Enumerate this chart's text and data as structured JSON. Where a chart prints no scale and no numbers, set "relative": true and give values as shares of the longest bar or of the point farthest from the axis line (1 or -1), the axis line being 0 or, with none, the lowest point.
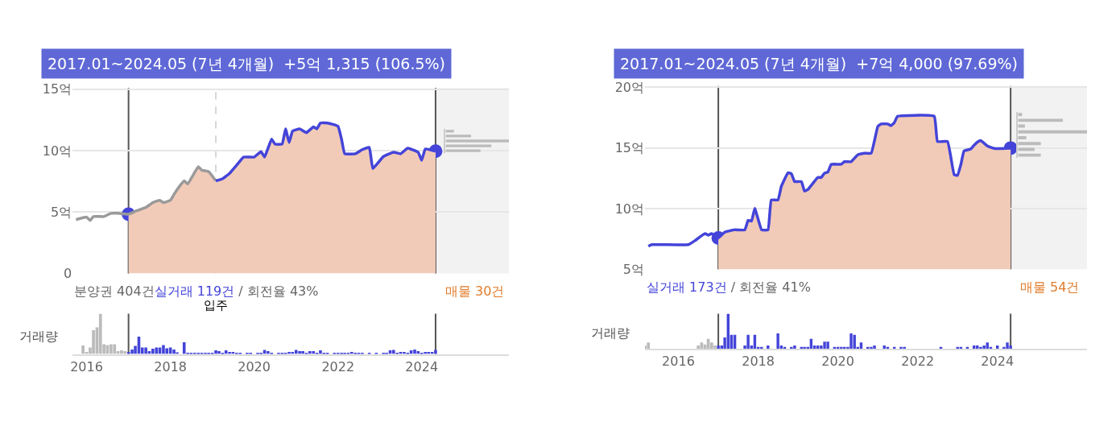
{
  "chart_data": [
    {
      "type": "line",
      "xlim": [
        "2015-09",
        "2026-02"
      ],
      "ylim": [
        0,
        15.1
      ],
      "yticks": [
        0,
        {
          "value": 5,
          "label": "5억"
        },
        {
          "value": 10,
          "label": "10억"
        },
        {
          "value": 15,
          "label": "15억"
        }
      ],
      "tick_labels": "y",
      "grid": "y",
      "annotations": [
        "2017.01~2024.05 (7년 4개월)  +5억 1,315 (106.5%)",
        "분양권 404건",
        "실거래 119건",
        "/ 회전율 43%"
      ],
      "ref_lines": [
        {
          "axis": "x",
          "value": "2017-01",
          "color": "#555555"
        },
        {
          "axis": "x",
          "value": "2024-05",
          "color": "#555555"
        },
        {
          "axis": "x",
          "value": "2019-02",
          "label": "입주",
          "color": "#d6d6d6",
          "line_style": "dashed"
        }
      ],
      "bands": [
        {
          "axis": "x",
          "from": "2024-05",
          "to": "2026-02",
          "label": "매물 30건",
          "color": "#f2f2f2"
        }
      ],
      "series": [
        {
          "type": "area",
          "color": "#f2cbb8",
          "x": [
            "2017-01",
            "2017-03",
            "2017-06",
            "2017-08",
            "2017-10",
            "2017-11",
            "2018-01",
            "2018-02",
            "2018-04",
            "2018-05",
            "2018-06",
            "2018-09",
            "2018-10",
            "2018-12",
            "2019-02",
            "2019-04",
            "2019-06",
            "2019-08",
            "2019-10",
            "2020-01",
            "2020-03",
            "2020-04",
            "2020-06",
            "2020-07",
            "2020-09",
            "2020-10",
            "2020-11",
            "2020-12",
            "2021-02",
            "2021-04",
            "2021-06",
            "2021-07",
            "2021-08",
            "2021-10",
            "2022-01",
            "2022-02",
            "2022-03",
            "2022-06",
            "2022-08",
            "2022-10",
            "2022-11",
            "2023-02",
            "2023-05",
            "2023-07",
            "2023-09",
            "2023-12",
            "2024-01",
            "2024-02",
            "2024-05"
          ],
          "values": [
            4.82,
            5.05,
            5.37,
            5.77,
            5.95,
            5.77,
            5.95,
            6.43,
            7.22,
            7.54,
            7.28,
            8.68,
            8.41,
            8.28,
            7.54,
            7.7,
            8.15,
            8.81,
            9.47,
            9.47,
            9.92,
            9.47,
            10.93,
            10.53,
            10.53,
            11.77,
            10.66,
            11.59,
            11.77,
            11.46,
            11.93,
            11.77,
            12.25,
            12.25,
            11.98,
            10.93,
            9.74,
            9.74,
            10.08,
            10.26,
            8.54,
            9.52,
            9.87,
            9.74,
            10.19,
            9.87,
            9.21,
            10.13,
            9.95
          ]
        },
        {
          "type": "line",
          "color": "#9a9a9a",
          "x": [
            "2015-10",
            "2016-01",
            "2016-02",
            "2016-03",
            "2016-06",
            "2016-08",
            "2016-10",
            "2017-01",
            "2017-03",
            "2017-06",
            "2017-08",
            "2017-10",
            "2017-11",
            "2018-01",
            "2018-02",
            "2018-04",
            "2018-05",
            "2018-06",
            "2018-09",
            "2018-10",
            "2018-12",
            "2019-02"
          ],
          "values": [
            4.37,
            4.58,
            4.31,
            4.63,
            4.63,
            4.89,
            4.89,
            4.82,
            5.05,
            5.37,
            5.77,
            5.95,
            5.77,
            5.95,
            6.43,
            7.22,
            7.54,
            7.28,
            8.68,
            8.41,
            8.28,
            7.54
          ]
        },
        {
          "type": "line",
          "color": "#4444d9",
          "x": [
            "2019-02",
            "2019-04",
            "2019-06",
            "2019-08",
            "2019-10",
            "2020-01",
            "2020-03",
            "2020-04",
            "2020-06",
            "2020-07",
            "2020-09",
            "2020-10",
            "2020-11",
            "2020-12",
            "2021-02",
            "2021-04",
            "2021-06",
            "2021-07",
            "2021-08",
            "2021-10",
            "2022-01",
            "2022-02",
            "2022-03",
            "2022-06",
            "2022-08",
            "2022-10",
            "2022-11",
            "2023-02",
            "2023-05",
            "2023-07",
            "2023-09",
            "2023-12",
            "2024-01",
            "2024-02",
            "2024-05"
          ],
          "values": [
            7.54,
            7.7,
            8.15,
            8.81,
            9.47,
            9.47,
            9.92,
            9.47,
            10.93,
            10.53,
            10.53,
            11.77,
            10.66,
            11.59,
            11.77,
            11.46,
            11.93,
            11.77,
            12.25,
            12.25,
            11.98,
            10.93,
            9.74,
            9.74,
            10.08,
            10.26,
            8.54,
            9.52,
            9.87,
            9.74,
            10.19,
            9.87,
            9.21,
            10.13,
            9.95
          ]
        },
        {
          "type": "scatter",
          "color": "#4444d9",
          "x": [
            "2017-01",
            "2024-05"
          ],
          "values": [
            4.82,
            9.95
          ]
        }
      ]
    },
    {
      "type": "bar",
      "relative": true,
      "ylabel": "거래량",
      "xlim": [
        "2015-09",
        "2026-02"
      ],
      "xticks": [
        "2016",
        "2018",
        "2020",
        "2022",
        "2024"
      ],
      "tick_labels": "x",
      "ref_lines": [
        {
          "axis": "x",
          "value": "2017-01",
          "color": "#555555"
        },
        {
          "axis": "x",
          "value": "2024-05",
          "color": "#555555"
        }
      ],
      "series": [
        {
          "color": "#bbbbbb",
          "x": [
            "2015-12",
            "2016-01",
            "2016-02",
            "2016-03",
            "2016-04",
            "2016-05",
            "2016-06",
            "2016-07",
            "2016-08",
            "2016-09",
            "2016-10",
            "2016-11",
            "2016-12"
          ],
          "values": [
            0.21,
            0.05,
            0.16,
            0.59,
            0.66,
            1,
            0.24,
            0.22,
            0.24,
            0.24,
            0.07,
            0.09,
            0.07
          ]
        },
        {
          "color": "#4444d9",
          "x": [
            "2017-01",
            "2017-02",
            "2017-03",
            "2017-04",
            "2017-05",
            "2017-06",
            "2017-07",
            "2017-08",
            "2017-09",
            "2017-10",
            "2017-11",
            "2017-12",
            "2018-01",
            "2018-02",
            "2018-03",
            "2018-04",
            "2018-05",
            "2018-06",
            "2018-07",
            "2018-08",
            "2018-09",
            "2018-10",
            "2018-11",
            "2018-12",
            "2019-01",
            "2019-02",
            "2019-03",
            "2019-04",
            "2019-05",
            "2019-06",
            "2019-07",
            "2019-08",
            "2019-09",
            "2019-10",
            "2019-11",
            "2019-12",
            "2020-01",
            "2020-02",
            "2020-03",
            "2020-04",
            "2020-05",
            "2020-06",
            "2020-07",
            "2020-08",
            "2020-09",
            "2020-10",
            "2020-11",
            "2020-12",
            "2021-01",
            "2021-02",
            "2021-03",
            "2021-04",
            "2021-05",
            "2021-06",
            "2021-07",
            "2021-08",
            "2021-09",
            "2021-10",
            "2021-11",
            "2021-12",
            "2022-01",
            "2022-02",
            "2022-03",
            "2022-04",
            "2022-05",
            "2022-06",
            "2022-07",
            "2022-08",
            "2022-09",
            "2022-10",
            "2022-11",
            "2022-12",
            "2023-01",
            "2023-02",
            "2023-03",
            "2023-04",
            "2023-05",
            "2023-06",
            "2023-07",
            "2023-08",
            "2023-09",
            "2023-10",
            "2023-11",
            "2023-12",
            "2024-01",
            "2024-02",
            "2024-03",
            "2024-04",
            "2024-05"
          ],
          "values": [
            0.05,
            0.11,
            0.2,
            0.43,
            0.16,
            0.16,
            0.07,
            0.13,
            0.16,
            0.16,
            0.22,
            0.14,
            0.16,
            0.11,
            0.04,
            0,
            0.29,
            0.03,
            0.03,
            0.03,
            0.03,
            0.03,
            0.03,
            0.03,
            0.03,
            0.09,
            0.07,
            0.03,
            0.09,
            0.05,
            0.05,
            0.03,
            0.03,
            0,
            0.03,
            0.03,
            0,
            0.03,
            0.03,
            0.1,
            0.07,
            0.03,
            0,
            0.03,
            0.03,
            0.03,
            0.05,
            0.05,
            0.1,
            0.07,
            0.07,
            0.03,
            0.07,
            0.07,
            0.03,
            0.09,
            0.03,
            0.03,
            0,
            0.03,
            0.03,
            0.03,
            0.03,
            0.03,
            0.05,
            0.03,
            0.03,
            0.03,
            0,
            0.03,
            0,
            0.03,
            0,
            0.03,
            0.03,
            0.09,
            0.1,
            0.03,
            0.05,
            0.05,
            0.03,
            0.09,
            0.11,
            0.07,
            0.03,
            0.05,
            0.05,
            0.05,
            0.1
          ]
        }
      ]
    },
    {
      "type": "bar",
      "relative": true,
      "orientation": "horizontal",
      "categories": [
        null,
        null,
        null,
        null,
        null
      ],
      "color": "#bbbbbb",
      "values": [
        0.13,
        0.4,
        1,
        0.72,
        0.55
      ]
    },
    {
      "type": "line",
      "xlim": [
        "2015-03",
        "2026-04"
      ],
      "ylim": [
        5,
        20.1
      ],
      "yticks": [
        {
          "value": 5,
          "label": "5억"
        },
        {
          "value": 10,
          "label": "10억"
        },
        {
          "value": 15,
          "label": "15억"
        },
        {
          "value": 20,
          "label": "20억"
        }
      ],
      "tick_labels": "y",
      "grid": "y",
      "annotations": [
        "2017.01~2024.05 (7년 4개월)  +7억 4,000 (97.69%)",
        "실거래 173건",
        "/ 회전율 41%"
      ],
      "ref_lines": [
        {
          "axis": "x",
          "value": "2017-01",
          "color": "#555555"
        },
        {
          "axis": "x",
          "value": "2024-05",
          "color": "#555555"
        }
      ],
      "bands": [
        {
          "axis": "x",
          "from": "2024-05",
          "to": "2026-04",
          "label": "매물 54건",
          "color": "#f2f2f2"
        }
      ],
      "series": [
        {
          "type": "area",
          "color": "#f2cbb8",
          "x": [
            "2017-01",
            "2017-03",
            "2017-06",
            "2017-09",
            "2017-10",
            "2017-11",
            "2017-12",
            "2018-02",
            "2018-04",
            "2018-05",
            "2018-07",
            "2018-08",
            "2018-10",
            "2018-11",
            "2018-12",
            "2019-02",
            "2019-03",
            "2019-04",
            "2019-07",
            "2019-08",
            "2019-09",
            "2019-10",
            "2019-11",
            "2020-02",
            "2020-03",
            "2020-05",
            "2020-07",
            "2020-09",
            "2020-11",
            "2021-01",
            "2021-02",
            "2021-04",
            "2021-05",
            "2021-06",
            "2021-07",
            "2022-06",
            "2022-07",
            "2022-10",
            "2022-12",
            "2023-01",
            "2023-02",
            "2023-03",
            "2023-05",
            "2023-06",
            "2023-07",
            "2023-08",
            "2023-10",
            "2023-12",
            "2024-05"
          ],
          "values": [
            7.58,
            8.06,
            8.25,
            8.25,
            9.03,
            8.97,
            10.01,
            8.25,
            8.25,
            10.71,
            10.71,
            11.83,
            12.95,
            12.87,
            12.22,
            12.22,
            11.44,
            11.57,
            12.56,
            12.56,
            12.92,
            13.0,
            13.65,
            13.65,
            13.86,
            13.86,
            14.43,
            14.56,
            14.56,
            16.77,
            16.97,
            16.97,
            16.82,
            17.08,
            17.6,
            17.6,
            15.52,
            15.52,
            12.79,
            12.74,
            13.65,
            14.74,
            14.9,
            15.21,
            15.47,
            15.6,
            15.16,
            14.95,
            14.98
          ]
        },
        {
          "type": "line",
          "color": "#4444d9",
          "x": [
            "2015-04",
            "2015-05",
            "2016-04",
            "2016-06",
            "2016-09",
            "2016-10",
            "2016-11",
            "2017-01",
            "2017-03",
            "2017-06",
            "2017-09",
            "2017-10",
            "2017-11",
            "2017-12",
            "2018-02",
            "2018-04",
            "2018-05",
            "2018-07",
            "2018-08",
            "2018-10",
            "2018-11",
            "2018-12",
            "2019-02",
            "2019-03",
            "2019-04",
            "2019-07",
            "2019-08",
            "2019-09",
            "2019-10",
            "2019-11",
            "2020-02",
            "2020-03",
            "2020-05",
            "2020-07",
            "2020-09",
            "2020-11",
            "2021-01",
            "2021-02",
            "2021-04",
            "2021-05",
            "2021-06",
            "2021-07",
            "2022-06",
            "2022-07",
            "2022-10",
            "2022-12",
            "2023-01",
            "2023-02",
            "2023-03",
            "2023-05",
            "2023-06",
            "2023-07",
            "2023-08",
            "2023-10",
            "2023-12",
            "2024-05"
          ],
          "values": [
            6.9,
            7.03,
            7.03,
            7.36,
            7.94,
            7.81,
            7.94,
            7.58,
            8.06,
            8.25,
            8.25,
            9.03,
            8.97,
            10.01,
            8.25,
            8.25,
            10.71,
            10.71,
            11.83,
            12.95,
            12.87,
            12.22,
            12.22,
            11.44,
            11.57,
            12.56,
            12.56,
            12.92,
            13.0,
            13.65,
            13.65,
            13.86,
            13.86,
            14.43,
            14.56,
            14.56,
            16.77,
            16.97,
            16.97,
            16.82,
            17.08,
            17.6,
            17.6,
            15.52,
            15.52,
            12.79,
            12.74,
            13.65,
            14.74,
            14.9,
            15.21,
            15.47,
            15.6,
            15.16,
            14.95,
            14.98
          ]
        },
        {
          "type": "scatter",
          "color": "#4444d9",
          "x": [
            "2017-01",
            "2024-05"
          ],
          "values": [
            7.58,
            14.98
          ]
        }
      ]
    },
    {
      "type": "bar",
      "relative": true,
      "ylabel": "거래량",
      "xlim": [
        "2015-03",
        "2026-04"
      ],
      "xticks": [
        "2016",
        "2018",
        "2020",
        "2022",
        "2024"
      ],
      "tick_labels": "x",
      "ref_lines": [
        {
          "axis": "x",
          "value": "2017-01",
          "color": "#555555"
        },
        {
          "axis": "x",
          "value": "2024-05",
          "color": "#555555"
        }
      ],
      "series": [
        {
          "color": "#bbbbbb",
          "x": [
            "2015-03",
            "2015-04",
            "2016-07",
            "2016-08",
            "2016-09",
            "2016-10",
            "2016-11",
            "2016-12"
          ],
          "values": [
            0.09,
            0.18,
            0.09,
            0.18,
            0.12,
            0.28,
            0.18,
            0.09
          ]
        },
        {
          "color": "#4444d9",
          "x": [
            "2017-01",
            "2017-02",
            "2017-03",
            "2017-04",
            "2017-05",
            "2017-06",
            "2017-07",
            "2017-08",
            "2017-09",
            "2017-10",
            "2017-11",
            "2017-12",
            "2018-01",
            "2018-02",
            "2018-03",
            "2018-04",
            "2018-05",
            "2018-06",
            "2018-07",
            "2018-08",
            "2018-09",
            "2018-10",
            "2018-11",
            "2018-12",
            "2019-01",
            "2019-02",
            "2019-03",
            "2019-04",
            "2019-05",
            "2019-06",
            "2019-07",
            "2019-08",
            "2019-09",
            "2019-10",
            "2019-11",
            "2019-12",
            "2020-01",
            "2020-02",
            "2020-03",
            "2020-04",
            "2020-05",
            "2020-06",
            "2020-07",
            "2020-08",
            "2020-09",
            "2020-10",
            "2020-11",
            "2020-12",
            "2021-01",
            "2021-02",
            "2021-03",
            "2021-04",
            "2021-05",
            "2021-06",
            "2021-07",
            "2021-08",
            "2021-09",
            "2021-10",
            "2021-11",
            "2021-12",
            "2022-01",
            "2022-02",
            "2022-03",
            "2022-04",
            "2022-05",
            "2022-06",
            "2022-07",
            "2022-08",
            "2022-09",
            "2022-10",
            "2022-11",
            "2022-12",
            "2023-01",
            "2023-02",
            "2023-03",
            "2023-04",
            "2023-05",
            "2023-06",
            "2023-07",
            "2023-08",
            "2023-09",
            "2023-10",
            "2023-11",
            "2023-12",
            "2024-01",
            "2024-02",
            "2024-03",
            "2024-04",
            "2024-05"
          ],
          "values": [
            0.09,
            0.09,
            0.32,
            1,
            0.4,
            0.4,
            0,
            0,
            0.09,
            0.4,
            0.09,
            0.4,
            0.05,
            0.05,
            0,
            0.09,
            0,
            0,
            0.44,
            0.09,
            0.05,
            0,
            0.05,
            0.09,
            0,
            0.05,
            0.05,
            0.05,
            0.28,
            0.09,
            0.09,
            0.09,
            0.2,
            0.2,
            0,
            0.05,
            0.05,
            0.05,
            0.05,
            0.05,
            0.44,
            0.4,
            0.05,
            0.18,
            0,
            0.05,
            0.05,
            0.09,
            0,
            0,
            0.09,
            0.05,
            0,
            0.05,
            0,
            0.05,
            0.05,
            0,
            0,
            0,
            0,
            0,
            0,
            0,
            0,
            0,
            0,
            0.05,
            0,
            0,
            0,
            0,
            0.05,
            0.05,
            0,
            0.05,
            0,
            0.09,
            0.09,
            0.05,
            0.09,
            0.18,
            0.05,
            0,
            0.09,
            0,
            0.05,
            0.18,
            0.09
          ]
        }
      ]
    },
    {
      "type": "bar",
      "relative": true,
      "orientation": "horizontal",
      "categories": [
        null,
        null,
        null,
        null,
        null,
        null,
        null,
        null
      ],
      "color": "#bbbbbb",
      "values": [
        0.06,
        0.65,
        0.1,
        1,
        0.12,
        0.33,
        0.24,
        0.33
      ]
    }
  ]
}
